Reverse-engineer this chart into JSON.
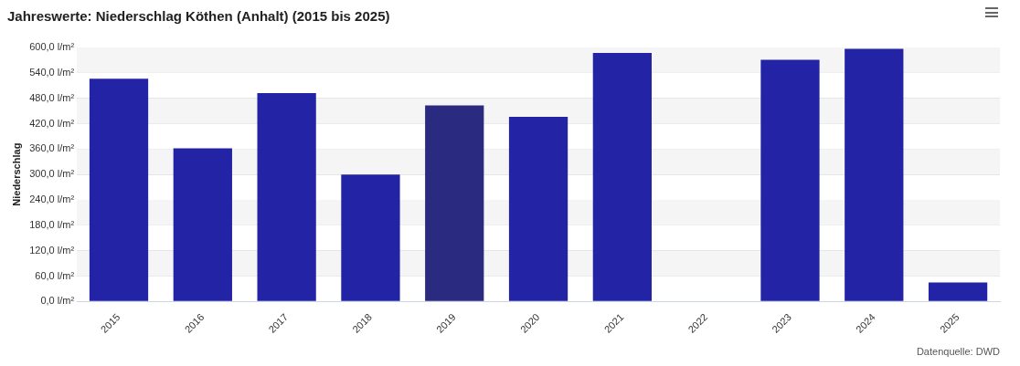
{
  "chart_data": {
    "type": "bar",
    "title": "Jahreswerte: Niederschlag Köthen (Anhalt) (2015 bis 2025)",
    "ylabel": "Niederschlag",
    "categories": [
      "2015",
      "2016",
      "2017",
      "2018",
      "2019",
      "2020",
      "2021",
      "2022",
      "2023",
      "2024",
      "2025"
    ],
    "values": [
      526,
      362,
      492,
      300,
      463,
      436,
      587,
      0,
      571,
      597,
      45
    ],
    "colors": [
      "#2323a5",
      "#2323a5",
      "#2323a5",
      "#2323a5",
      "#2a2a80",
      "#2323a5",
      "#2323a5",
      "#2323a5",
      "#2323a5",
      "#2323a5",
      "#2323a5"
    ],
    "ylim": [
      0,
      600
    ],
    "yticks": [
      {
        "value": 0,
        "label": "0,0 l/m²"
      },
      {
        "value": 60,
        "label": "60,0 l/m²"
      },
      {
        "value": 120,
        "label": "120,0 l/m²"
      },
      {
        "value": 180,
        "label": "180,0 l/m²"
      },
      {
        "value": 240,
        "label": "240,0 l/m²"
      },
      {
        "value": 300,
        "label": "300,0 l/m²"
      },
      {
        "value": 360,
        "label": "360,0 l/m²"
      },
      {
        "value": 420,
        "label": "420,0 l/m²"
      },
      {
        "value": 480,
        "label": "480,0 l/m²"
      },
      {
        "value": 540,
        "label": "540,0 l/m²"
      },
      {
        "value": 600,
        "label": "600,0 l/m²"
      }
    ],
    "bands": [
      {
        "axis": "y",
        "from": 60,
        "to": 120,
        "color": "#f5f5f5"
      },
      {
        "axis": "y",
        "from": 180,
        "to": 240,
        "color": "#f5f5f5"
      },
      {
        "axis": "y",
        "from": 300,
        "to": 360,
        "color": "#f5f5f5"
      },
      {
        "axis": "y",
        "from": 420,
        "to": 480,
        "color": "#f5f5f5"
      },
      {
        "axis": "y",
        "from": 540,
        "to": 600,
        "color": "#f5f5f5"
      }
    ],
    "grid": "y",
    "legend": false,
    "annotations": [
      "Datenquelle: DWD"
    ]
  }
}
